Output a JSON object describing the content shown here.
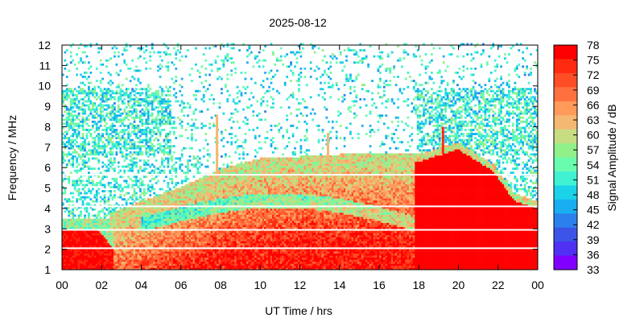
{
  "chart_data": {
    "type": "heatmap",
    "title": "2025-08-12",
    "xlabel": "UT Time / hrs",
    "ylabel": "Frequency / MHz",
    "colorbar_label": "Signal Amplitude / dB",
    "xlim": [
      0,
      24
    ],
    "ylim": [
      1,
      12
    ],
    "x_ticks": [
      "00",
      "02",
      "04",
      "06",
      "08",
      "10",
      "12",
      "14",
      "16",
      "18",
      "20",
      "22",
      "00"
    ],
    "y_ticks": [
      "1",
      "2",
      "3",
      "4",
      "5",
      "6",
      "7",
      "8",
      "9",
      "10",
      "11",
      "12"
    ],
    "colorbar_ticks": [
      "78",
      "75",
      "72",
      "69",
      "66",
      "63",
      "60",
      "57",
      "54",
      "51",
      "48",
      "45",
      "42",
      "39",
      "36",
      "33"
    ],
    "colorbar_range": [
      33,
      78
    ],
    "colorbar_colors": [
      "#ff0000",
      "#ff2a10",
      "#ff4d25",
      "#ff7040",
      "#ff9a5a",
      "#f4b872",
      "#c8dc82",
      "#92f08a",
      "#6afcae",
      "#40f2d2",
      "#1cd2e8",
      "#18aef0",
      "#2c80ee",
      "#3c54e8",
      "#5030f2",
      "#8000ff"
    ],
    "background_noise_band_mhz": [
      6.6,
      9.9
    ],
    "features": [
      {
        "name": "daytime absorption envelope",
        "value_db": 78,
        "upper_edge_mhz": [
          [
            2.4,
            3.4
          ],
          [
            4,
            4
          ],
          [
            6,
            4.7
          ],
          [
            8,
            5.6
          ],
          [
            10,
            6.1
          ],
          [
            12,
            6.2
          ],
          [
            14,
            6.3
          ],
          [
            16,
            6.4
          ],
          [
            18,
            6.3
          ],
          [
            20,
            6.9
          ],
          [
            21.8,
            5.8
          ],
          [
            22.8,
            4.4
          ],
          [
            24,
            4.0
          ]
        ]
      },
      {
        "name": "early morning strong band",
        "value_db": 77,
        "x_range": [
          0,
          2.6
        ],
        "freq_range": [
          1,
          3.2
        ]
      },
      {
        "name": "spike 07:48",
        "x": 7.8,
        "freq_top": 8.6
      },
      {
        "name": "spike 13:24",
        "x": 13.4,
        "freq_top": 7.7
      },
      {
        "name": "spike 19:12",
        "x": 19.2,
        "freq_top": 8.0
      }
    ]
  }
}
